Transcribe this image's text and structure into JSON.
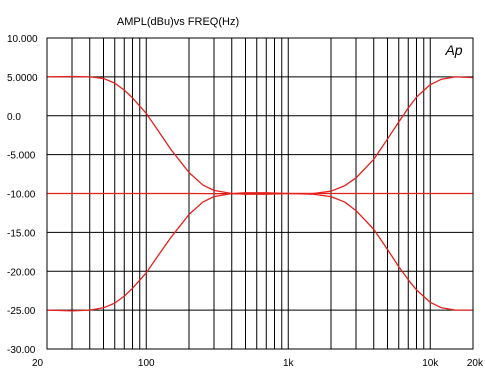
{
  "chart_data": {
    "type": "line",
    "title": "AMPL(dBu)vs  FREQ(Hz)",
    "logo_text": "Ap",
    "xlabel": "",
    "ylabel": "",
    "x_scale": "log",
    "xlim": [
      20,
      20000
    ],
    "ylim": [
      -30,
      10
    ],
    "x_tick_labels": [
      {
        "value": 20,
        "label": "20"
      },
      {
        "value": 100,
        "label": "100"
      },
      {
        "value": 1000,
        "label": "1k"
      },
      {
        "value": 10000,
        "label": "10k"
      },
      {
        "value": 20000,
        "label": "20k"
      }
    ],
    "y_tick_labels": [
      {
        "value": 10,
        "label": "10.000"
      },
      {
        "value": 5,
        "label": "5.0000"
      },
      {
        "value": 0,
        "label": "0.0"
      },
      {
        "value": -5,
        "label": "-5.000"
      },
      {
        "value": -10,
        "label": "-10.00"
      },
      {
        "value": -15,
        "label": "-15.00"
      },
      {
        "value": -20,
        "label": "-20.00"
      },
      {
        "value": -25,
        "label": "-25.00"
      },
      {
        "value": -30,
        "label": "-30.00"
      }
    ],
    "grid": true,
    "line_color": "#e8201c",
    "series": [
      {
        "points": [
          [
            20,
            5.0
          ],
          [
            30,
            5.05
          ],
          [
            40,
            5.0
          ],
          [
            50,
            4.8
          ],
          [
            60,
            4.2
          ],
          [
            70,
            3.3
          ],
          [
            80,
            2.3
          ],
          [
            100,
            0.3
          ],
          [
            120,
            -1.8
          ],
          [
            150,
            -4.4
          ],
          [
            200,
            -7.3
          ],
          [
            250,
            -8.9
          ],
          [
            300,
            -9.6
          ],
          [
            400,
            -10.0
          ],
          [
            500,
            -10.1
          ],
          [
            700,
            -10.1
          ],
          [
            1000,
            -10.0
          ],
          [
            1500,
            -10.0
          ],
          [
            2000,
            -9.7
          ],
          [
            2500,
            -9.0
          ],
          [
            3000,
            -8.0
          ],
          [
            4000,
            -5.6
          ],
          [
            5000,
            -3.0
          ],
          [
            6000,
            -0.8
          ],
          [
            7000,
            1.0
          ],
          [
            8000,
            2.4
          ],
          [
            10000,
            4.0
          ],
          [
            12000,
            4.7
          ],
          [
            15000,
            5.0
          ],
          [
            20000,
            4.9
          ]
        ]
      },
      {
        "points": [
          [
            20,
            -10.0
          ],
          [
            50,
            -10.0
          ],
          [
            100,
            -10.0
          ],
          [
            200,
            -10.0
          ],
          [
            500,
            -10.05
          ],
          [
            1000,
            -10.0
          ],
          [
            2000,
            -10.0
          ],
          [
            5000,
            -10.0
          ],
          [
            10000,
            -10.0
          ],
          [
            20000,
            -10.0
          ]
        ]
      },
      {
        "points": [
          [
            20,
            -25.0
          ],
          [
            30,
            -25.1
          ],
          [
            40,
            -25.0
          ],
          [
            50,
            -24.7
          ],
          [
            60,
            -24.1
          ],
          [
            70,
            -23.2
          ],
          [
            80,
            -22.2
          ],
          [
            100,
            -20.2
          ],
          [
            120,
            -18.1
          ],
          [
            150,
            -15.6
          ],
          [
            200,
            -12.7
          ],
          [
            250,
            -11.1
          ],
          [
            300,
            -10.4
          ],
          [
            400,
            -10.0
          ],
          [
            500,
            -9.9
          ],
          [
            700,
            -9.9
          ],
          [
            1000,
            -10.0
          ],
          [
            1500,
            -10.1
          ],
          [
            2000,
            -10.4
          ],
          [
            2500,
            -11.1
          ],
          [
            3000,
            -12.2
          ],
          [
            4000,
            -14.6
          ],
          [
            5000,
            -17.2
          ],
          [
            6000,
            -19.4
          ],
          [
            7000,
            -21.1
          ],
          [
            8000,
            -22.4
          ],
          [
            10000,
            -24.0
          ],
          [
            12000,
            -24.7
          ],
          [
            15000,
            -25.0
          ],
          [
            20000,
            -25.0
          ]
        ]
      }
    ]
  }
}
